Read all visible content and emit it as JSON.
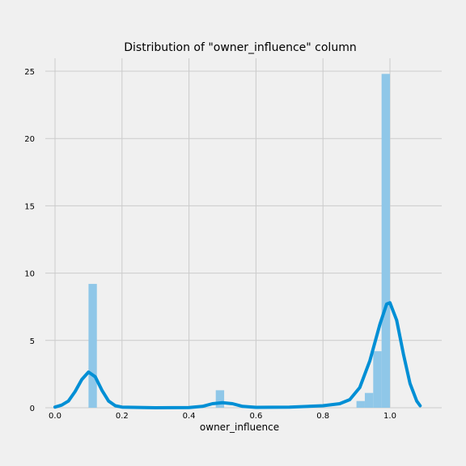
{
  "chart_data": {
    "type": "histogram",
    "title": "Distribution of \"owner_influence\" column",
    "xlabel": "owner_influence",
    "ylabel": "",
    "xlim": [
      -0.03,
      1.15
    ],
    "ylim": [
      0,
      26
    ],
    "x_ticks": [
      "0.0",
      "0.2",
      "0.4",
      "0.6",
      "0.8",
      "1.0"
    ],
    "x_tick_values": [
      0.0,
      0.2,
      0.4,
      0.6,
      0.8,
      1.0
    ],
    "y_ticks": [
      "0",
      "5",
      "10",
      "15",
      "20",
      "25"
    ],
    "y_tick_values": [
      0,
      5,
      10,
      15,
      20,
      25
    ],
    "grid": true,
    "bins": [
      {
        "x0": 0.1,
        "x1": 0.125,
        "value": 9.2
      },
      {
        "x0": 0.48,
        "x1": 0.505,
        "value": 1.3
      },
      {
        "x0": 0.9,
        "x1": 0.925,
        "value": 0.5
      },
      {
        "x0": 0.925,
        "x1": 0.95,
        "value": 1.1
      },
      {
        "x0": 0.95,
        "x1": 0.975,
        "value": 4.2
      },
      {
        "x0": 0.975,
        "x1": 1.0,
        "value": 24.8
      }
    ],
    "kde": [
      [
        0.0,
        0.05
      ],
      [
        0.02,
        0.2
      ],
      [
        0.04,
        0.5
      ],
      [
        0.06,
        1.2
      ],
      [
        0.08,
        2.1
      ],
      [
        0.1,
        2.65
      ],
      [
        0.12,
        2.3
      ],
      [
        0.14,
        1.3
      ],
      [
        0.16,
        0.5
      ],
      [
        0.18,
        0.15
      ],
      [
        0.2,
        0.05
      ],
      [
        0.3,
        0.0
      ],
      [
        0.4,
        0.02
      ],
      [
        0.44,
        0.1
      ],
      [
        0.47,
        0.3
      ],
      [
        0.5,
        0.38
      ],
      [
        0.53,
        0.3
      ],
      [
        0.56,
        0.1
      ],
      [
        0.6,
        0.03
      ],
      [
        0.7,
        0.05
      ],
      [
        0.8,
        0.15
      ],
      [
        0.85,
        0.3
      ],
      [
        0.88,
        0.6
      ],
      [
        0.91,
        1.5
      ],
      [
        0.94,
        3.5
      ],
      [
        0.97,
        6.2
      ],
      [
        0.99,
        7.7
      ],
      [
        1.0,
        7.8
      ],
      [
        1.02,
        6.5
      ],
      [
        1.04,
        4.0
      ],
      [
        1.06,
        1.8
      ],
      [
        1.08,
        0.5
      ],
      [
        1.09,
        0.15
      ]
    ]
  }
}
